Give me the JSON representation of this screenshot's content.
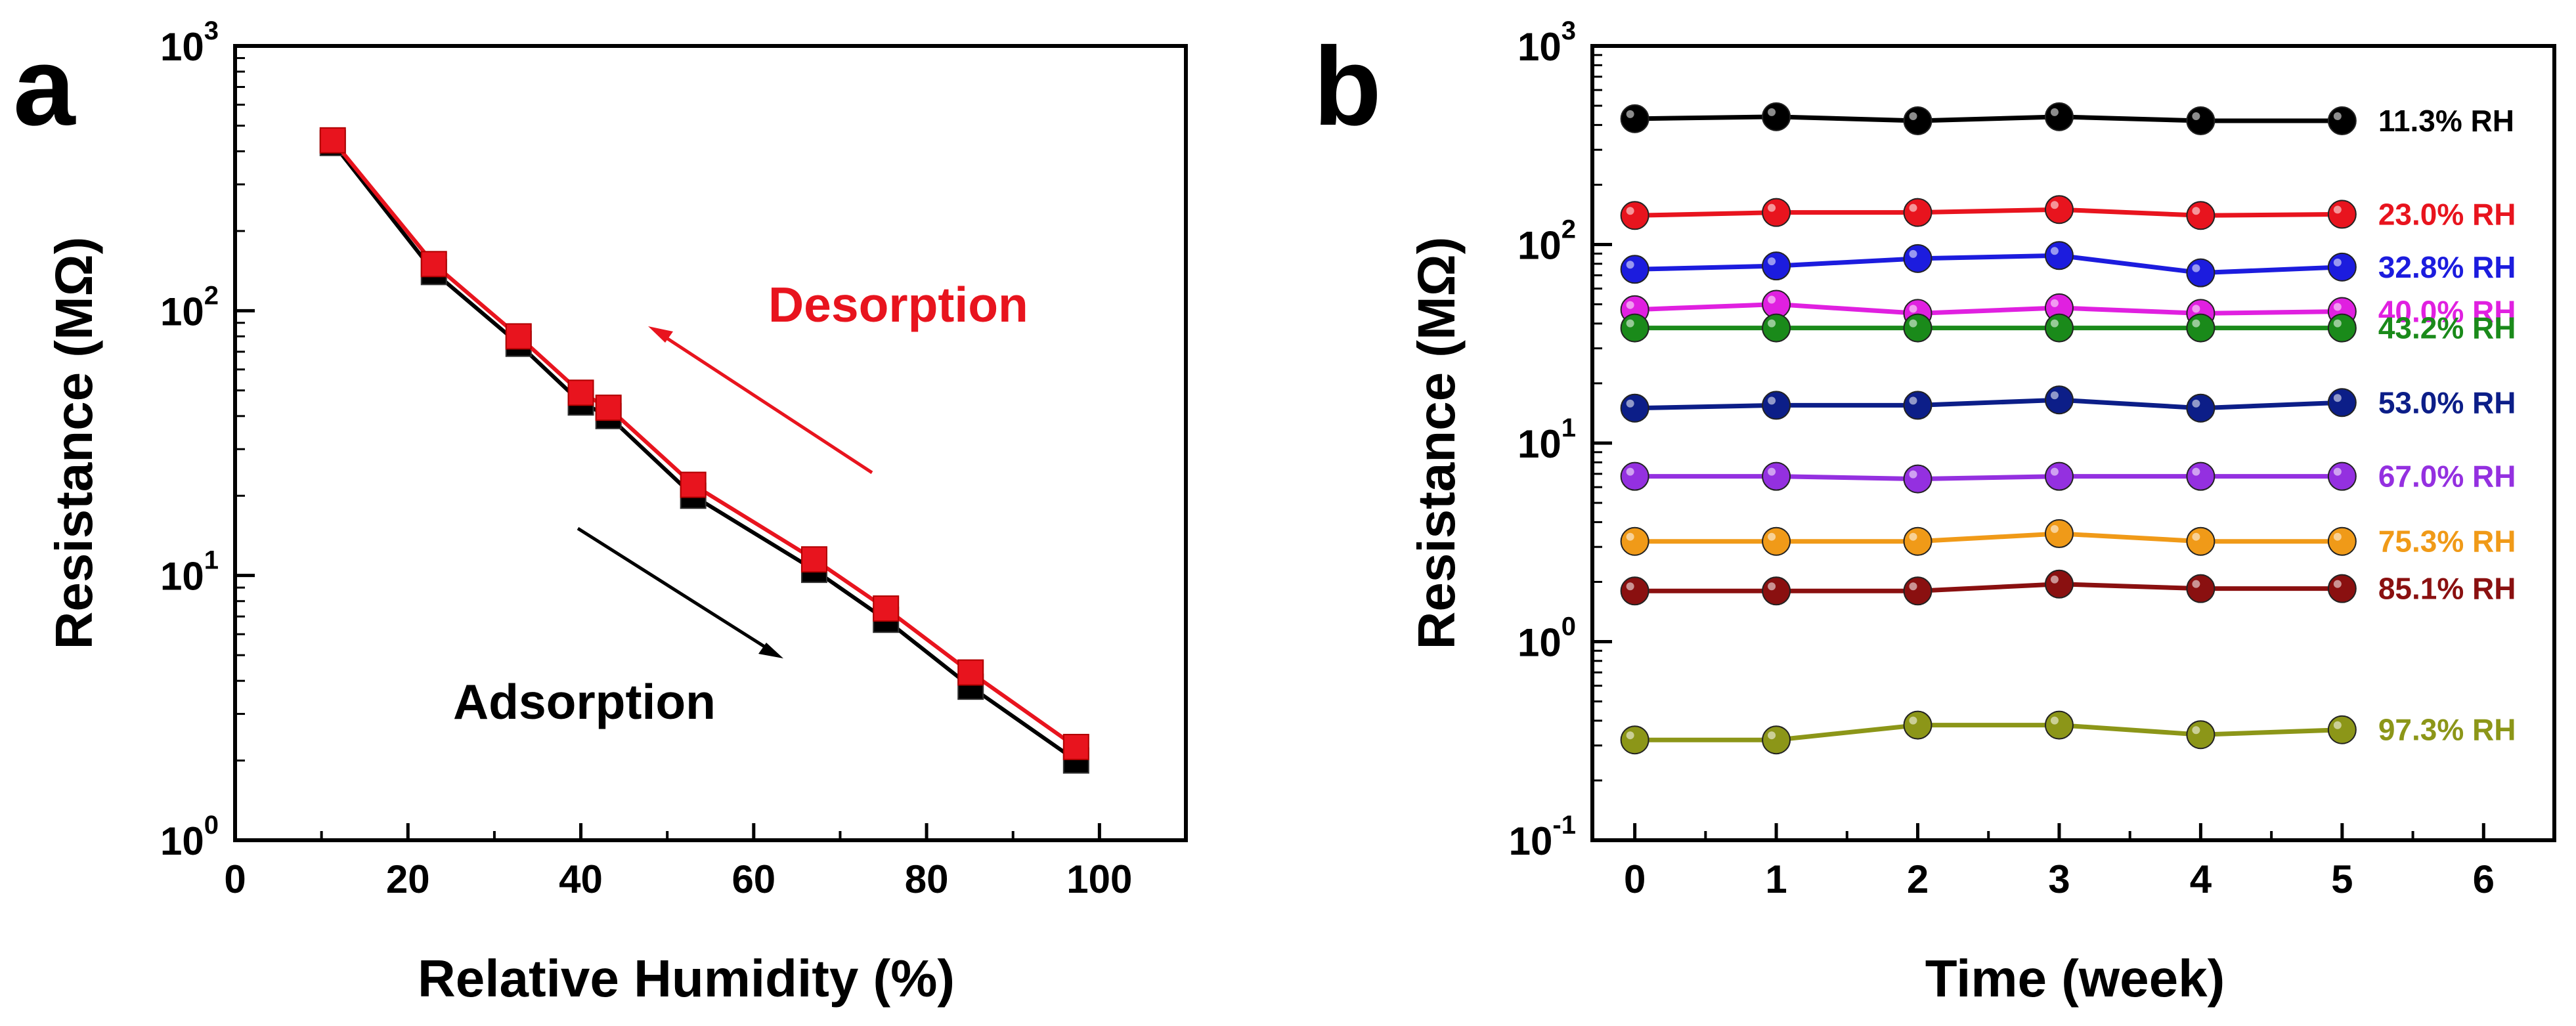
{
  "chart_data": [
    {
      "panel": "a",
      "type": "line",
      "y_scale": "log",
      "xlabel": "Relative Humidity (%)",
      "ylabel": "Resistance (MΩ)",
      "xlim": [
        0,
        110
      ],
      "ylim": [
        1,
        1000
      ],
      "x_ticks": [
        0,
        20,
        40,
        60,
        80,
        100
      ],
      "x_tick_labels": [
        "0",
        "20",
        "40",
        "60",
        "80",
        "100"
      ],
      "y_ticks": [
        1,
        10,
        100,
        1000
      ],
      "y_tick_labels": [
        {
          "base": "10",
          "exp": "0"
        },
        {
          "base": "10",
          "exp": "1"
        },
        {
          "base": "10",
          "exp": "2"
        },
        {
          "base": "10",
          "exp": "3"
        }
      ],
      "series": [
        {
          "name": "Adsorption",
          "color": "#000000",
          "x": [
            11.3,
            23.0,
            32.8,
            40.0,
            43.2,
            53.0,
            67.0,
            75.3,
            85.1,
            97.3
          ],
          "y": [
            430,
            140,
            75,
            45,
            40,
            20,
            10.5,
            6.8,
            3.8,
            2.0
          ]
        },
        {
          "name": "Desorption",
          "color": "#e8141e",
          "x": [
            11.3,
            23.0,
            32.8,
            40.0,
            43.2,
            53.0,
            67.0,
            75.3,
            85.1,
            97.3
          ],
          "y": [
            440,
            150,
            80,
            49,
            43,
            22,
            11.5,
            7.5,
            4.3,
            2.25
          ]
        }
      ],
      "annotations": [
        {
          "text": "Desorption",
          "color": "#e8141e",
          "arrow": "up-left"
        },
        {
          "text": "Adsorption",
          "color": "#000000",
          "arrow": "down-right"
        }
      ]
    },
    {
      "panel": "b",
      "type": "line",
      "y_scale": "log",
      "xlabel": "Time (week)",
      "ylabel": "Resistance (MΩ)",
      "xlim": [
        -0.3,
        6.5
      ],
      "ylim": [
        0.1,
        1000
      ],
      "x_ticks": [
        0,
        1,
        2,
        3,
        4,
        5,
        6
      ],
      "x_tick_labels": [
        "0",
        "1",
        "2",
        "3",
        "4",
        "5",
        "6"
      ],
      "y_ticks": [
        0.1,
        1,
        10,
        100,
        1000
      ],
      "y_tick_labels": [
        {
          "base": "10",
          "exp": "-1"
        },
        {
          "base": "10",
          "exp": "0"
        },
        {
          "base": "10",
          "exp": "1"
        },
        {
          "base": "10",
          "exp": "2"
        },
        {
          "base": "10",
          "exp": "3"
        }
      ],
      "x": [
        0,
        1,
        2,
        3,
        4,
        5
      ],
      "series": [
        {
          "name": "11.3% RH",
          "color": "#000000",
          "values": [
            430,
            440,
            420,
            440,
            420,
            420
          ]
        },
        {
          "name": "23.0% RH",
          "color": "#e8141e",
          "values": [
            140,
            145,
            145,
            150,
            140,
            142
          ]
        },
        {
          "name": "32.8% RH",
          "color": "#1c1cde",
          "values": [
            75,
            78,
            85,
            88,
            72,
            77
          ]
        },
        {
          "name": "40.0% RH",
          "color": "#e020e0",
          "values": [
            47,
            50,
            45,
            48,
            45,
            46
          ]
        },
        {
          "name": "43.2% RH",
          "color": "#1a8a1a",
          "values": [
            38,
            38,
            38,
            38,
            38,
            38
          ]
        },
        {
          "name": "53.0% RH",
          "color": "#0c1e88",
          "values": [
            15,
            15.5,
            15.5,
            16.5,
            15,
            16
          ]
        },
        {
          "name": "67.0% RH",
          "color": "#9430e0",
          "values": [
            6.8,
            6.8,
            6.6,
            6.8,
            6.8,
            6.8
          ]
        },
        {
          "name": "75.3% RH",
          "color": "#f09a18",
          "values": [
            3.2,
            3.2,
            3.2,
            3.5,
            3.2,
            3.2
          ]
        },
        {
          "name": "85.1% RH",
          "color": "#8a1010",
          "values": [
            1.8,
            1.8,
            1.8,
            1.95,
            1.85,
            1.85
          ]
        },
        {
          "name": "97.3% RH",
          "color": "#8c9618",
          "values": [
            0.32,
            0.32,
            0.38,
            0.38,
            0.34,
            0.36
          ]
        }
      ]
    }
  ]
}
